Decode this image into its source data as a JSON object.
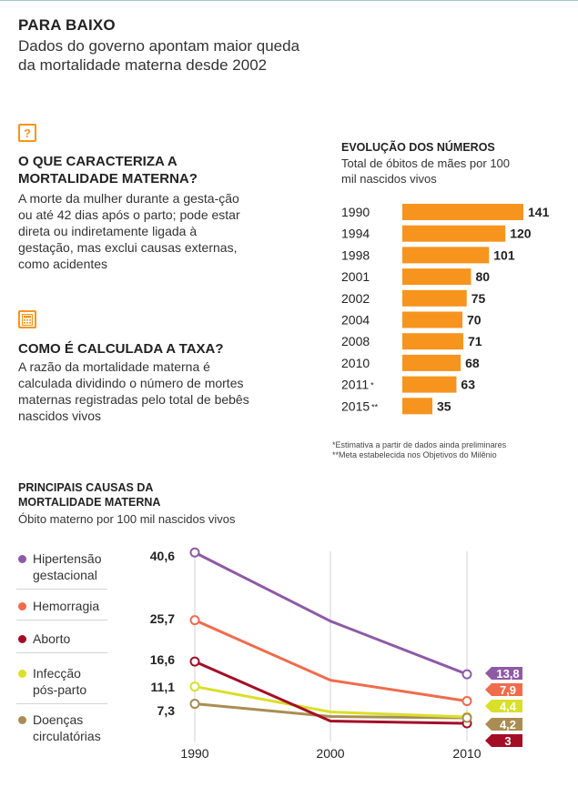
{
  "header": {
    "title": "PARA BAIXO",
    "subtitle": "Dados do governo apontam maior queda da mortalidade materna desde 2002"
  },
  "qa": [
    {
      "icon": "question-mark-icon",
      "heading": "O QUE CARACTERIZA A MORTALIDADE MATERNA?",
      "text": "A morte da mulher durante a gesta-ção ou até 42 dias após o parto; pode estar direta ou indiretamente ligada à gestação, mas exclui causas externas, como acidentes"
    },
    {
      "icon": "calculator-icon",
      "heading": "COMO É CALCULADA A TAXA?",
      "text": "A razão da mortalidade materna é calculada dividindo o número de mortes maternas registradas pelo total de bebês nascidos vivos"
    }
  ],
  "colors": {
    "accent": "#f7941d",
    "hipertensao": "#8e5aa5",
    "hemorragia": "#ef6c4d",
    "aborto": "#a30e26",
    "infeccao": "#d8e02a",
    "doencas": "#a98d52"
  },
  "chart_data": [
    {
      "type": "bar",
      "orientation": "horizontal",
      "title": "EVOLUÇÃO DOS NÚMEROS",
      "subtitle": "Total de óbitos de mães por 100 mil nascidos vivos",
      "categories": [
        "1990",
        "1994",
        "1998",
        "2001",
        "2002",
        "2004",
        "2008",
        "2010",
        "2011",
        "2015"
      ],
      "markers": [
        "",
        "",
        "",
        "",
        "",
        "",
        "",
        "",
        "*",
        "**"
      ],
      "values": [
        141,
        120,
        101,
        80,
        75,
        70,
        71,
        68,
        63,
        35
      ],
      "xlim": [
        0,
        141
      ],
      "color": "#f7941d",
      "notes": [
        "*Estimativa a partir de dados ainda preliminares",
        "**Meta estabelecida nos Objetivos do Milênio"
      ]
    },
    {
      "type": "line",
      "title": "PRINCIPAIS CAUSAS DA MORTALIDADE MATERNA",
      "subtitle": "Óbito materno por 100 mil nascidos vivos",
      "x": [
        "1990",
        "2000",
        "2010"
      ],
      "ylim": [
        0,
        45
      ],
      "start_labels": [
        "40,6",
        "25,7",
        "16,6",
        "11,1",
        "7,3"
      ],
      "series": [
        {
          "name": "Hipertensão gestacional",
          "values": [
            40.6,
            25.5,
            13.8
          ],
          "color": "#8e5aa5",
          "end_label": "13,8"
        },
        {
          "name": "Hemorragia",
          "values": [
            25.7,
            12.5,
            7.9
          ],
          "color": "#ef6c4d",
          "end_label": "7,9"
        },
        {
          "name": "Aborto",
          "values": [
            16.6,
            3.5,
            3.0
          ],
          "color": "#a30e26",
          "end_label": "3"
        },
        {
          "name": "Infecção pós-parto",
          "values": [
            11.1,
            5.5,
            4.4
          ],
          "color": "#d8e02a",
          "end_label": "4,4"
        },
        {
          "name": "Doenças circulatórias",
          "values": [
            7.3,
            4.5,
            4.2
          ],
          "color": "#a98d52",
          "end_label": "4,2"
        }
      ]
    }
  ]
}
